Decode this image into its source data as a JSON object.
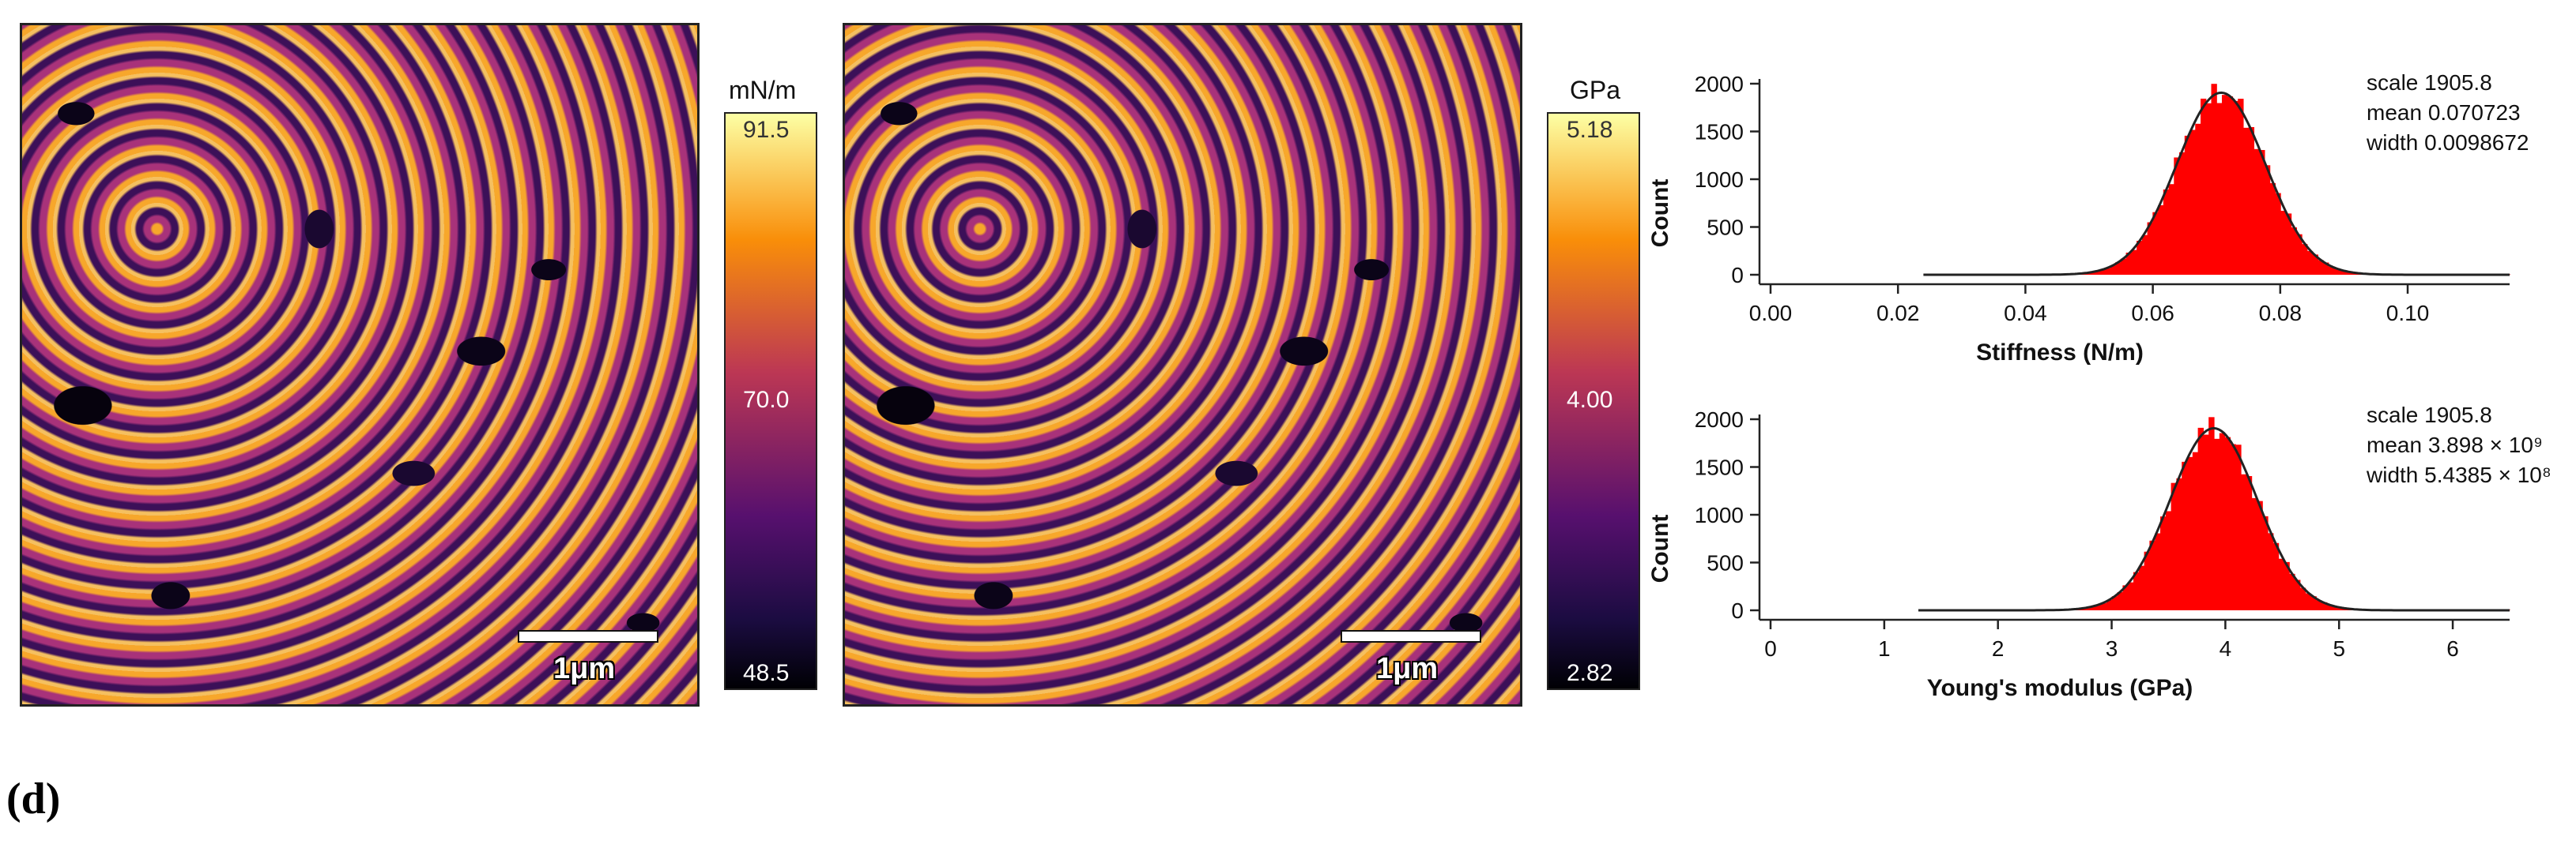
{
  "panels": {
    "stiffness_map": {
      "unit": "mN/m",
      "ticks": {
        "top": "91.5",
        "mid": "70.0",
        "bottom": "48.5"
      },
      "scalebar": "1μm"
    },
    "modulus_map": {
      "unit": "GPa",
      "ticks": {
        "top": "5.18",
        "mid": "4.00",
        "bottom": "2.82"
      },
      "scalebar": "1μm"
    }
  },
  "figure_label": "(d)",
  "chart_data": [
    {
      "type": "bar",
      "xlabel": "Stiffness (N/m)",
      "ylabel": "Count",
      "xlim": [
        0,
        0.116
      ],
      "ylim": [
        0,
        2000
      ],
      "xticks": [
        0.0,
        0.02,
        0.04,
        0.06,
        0.08,
        0.1
      ],
      "xtick_labels": [
        "0.00",
        "0.02",
        "0.04",
        "0.06",
        "0.08",
        "0.10"
      ],
      "yticks": [
        0,
        500,
        1000,
        1500,
        2000
      ],
      "ytick_labels": [
        "0",
        "500",
        "1000",
        "1500",
        "2000"
      ],
      "hist_range": [
        0.024,
        0.116
      ],
      "fit": {
        "scale": 1905.8,
        "mean": 0.070723,
        "width": 0.0098672
      },
      "annotations": [
        "scale 1905.8",
        "mean 0.070723",
        "width 0.0098672"
      ],
      "bar_color": "#ff0000",
      "fit_color": "#222222"
    },
    {
      "type": "bar",
      "xlabel": "Young's modulus (GPa)",
      "ylabel": "Count",
      "xlim": [
        0,
        6.5
      ],
      "ylim": [
        0,
        2000
      ],
      "xticks": [
        0,
        1,
        2,
        3,
        4,
        5,
        6
      ],
      "xtick_labels": [
        "0",
        "1",
        "2",
        "3",
        "4",
        "5",
        "6"
      ],
      "yticks": [
        0,
        500,
        1000,
        1500,
        2000
      ],
      "ytick_labels": [
        "0",
        "500",
        "1000",
        "1500",
        "2000"
      ],
      "hist_range": [
        1.3,
        6.5
      ],
      "fit": {
        "scale": 1905.8,
        "mean": 3.898,
        "width": 0.54385
      },
      "annotations": [
        "scale 1905.8",
        "mean 3.898 × 10⁹",
        "width 5.4385 × 10⁸"
      ],
      "bar_color": "#ff0000",
      "fit_color": "#222222"
    }
  ]
}
